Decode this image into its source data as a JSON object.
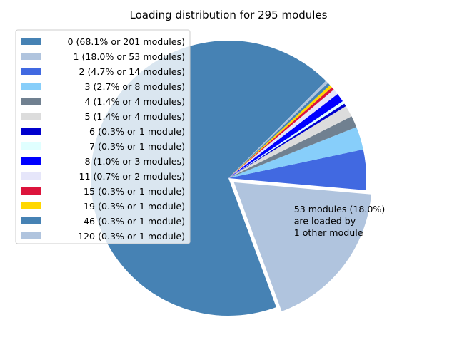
{
  "chart_data": {
    "type": "pie",
    "title": "Loading distribution for 295 modules",
    "slices": [
      {
        "label": "0 (68.1% or 201 modules)",
        "value": 201,
        "color": "#4682b4"
      },
      {
        "label": "1 (18.0% or 53 modules)",
        "value": 53,
        "color": "#b0c4de",
        "exploded": true
      },
      {
        "label": "2 (4.7% or 14 modules)",
        "value": 14,
        "color": "#4169e1"
      },
      {
        "label": "3 (2.7% or 8 modules)",
        "value": 8,
        "color": "#87cefa"
      },
      {
        "label": "4 (1.4% or 4 modules)",
        "value": 4,
        "color": "#708090"
      },
      {
        "label": "5 (1.4% or 4 modules)",
        "value": 4,
        "color": "#dcdcdc"
      },
      {
        "label": "6 (0.3% or 1 module)",
        "value": 1,
        "color": "#0000cd"
      },
      {
        "label": "7 (0.3% or 1 module)",
        "value": 1,
        "color": "#e0ffff"
      },
      {
        "label": "8 (1.0% or 3 modules)",
        "value": 3,
        "color": "#0000ff"
      },
      {
        "label": "11 (0.7% or 2 modules)",
        "value": 2,
        "color": "#e6e6fa"
      },
      {
        "label": "15 (0.3% or 1 module)",
        "value": 1,
        "color": "#dc143c"
      },
      {
        "label": "19 (0.3% or 1 module)",
        "value": 1,
        "color": "#ffd700"
      },
      {
        "label": "46 (0.3% or 1 module)",
        "value": 1,
        "color": "#4682b4"
      },
      {
        "label": "120 (0.3% or 1 module)",
        "value": 1,
        "color": "#b0c4de"
      }
    ],
    "annotation": [
      "53 modules (18.0%)",
      "are loaded by",
      "1 other module"
    ],
    "legend_position": "upper-left"
  }
}
